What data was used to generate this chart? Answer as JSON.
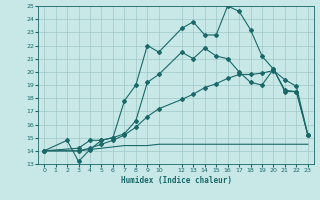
{
  "title": "",
  "xlabel": "Humidex (Indice chaleur)",
  "bg_color": "#c8e8e8",
  "grid_color": "#a0c8c8",
  "line_color": "#1a6868",
  "xlim": [
    -0.5,
    23.5
  ],
  "ylim": [
    13,
    25
  ],
  "xticks": [
    0,
    1,
    2,
    3,
    4,
    5,
    6,
    7,
    8,
    9,
    10,
    12,
    13,
    14,
    15,
    16,
    17,
    18,
    19,
    20,
    21,
    22,
    23
  ],
  "yticks": [
    13,
    14,
    15,
    16,
    17,
    18,
    19,
    20,
    21,
    22,
    23,
    24,
    25
  ],
  "line1_x": [
    0,
    2,
    3,
    4,
    5,
    6,
    7,
    8,
    9,
    10,
    12,
    13,
    14,
    15,
    16,
    17,
    18,
    19,
    20,
    21,
    22,
    23
  ],
  "line1_y": [
    14.0,
    14.8,
    13.2,
    14.1,
    14.8,
    15.0,
    17.8,
    19.0,
    22.0,
    21.5,
    23.3,
    23.8,
    22.8,
    22.8,
    25.0,
    24.6,
    23.2,
    21.2,
    20.2,
    18.6,
    18.5,
    15.2
  ],
  "line2_x": [
    0,
    3,
    4,
    5,
    6,
    7,
    8,
    9,
    10,
    12,
    13,
    14,
    15,
    16,
    17,
    18,
    19,
    20,
    21,
    22,
    23
  ],
  "line2_y": [
    14.0,
    14.2,
    14.8,
    14.8,
    15.0,
    15.3,
    16.3,
    19.2,
    19.8,
    21.5,
    21.0,
    21.8,
    21.2,
    21.0,
    20.0,
    19.2,
    19.0,
    20.2,
    18.5,
    18.5,
    15.2
  ],
  "line3_x": [
    0,
    3,
    4,
    5,
    6,
    7,
    8,
    9,
    10,
    12,
    13,
    14,
    15,
    16,
    17,
    18,
    19,
    20,
    21,
    22,
    23
  ],
  "line3_y": [
    14.0,
    14.0,
    14.2,
    14.5,
    14.8,
    15.2,
    15.8,
    16.6,
    17.2,
    17.9,
    18.3,
    18.8,
    19.1,
    19.5,
    19.8,
    19.8,
    19.9,
    20.1,
    19.4,
    18.9,
    15.2
  ],
  "line4_x": [
    0,
    2,
    3,
    4,
    5,
    6,
    7,
    8,
    9,
    10,
    12,
    13,
    14,
    15,
    16,
    17,
    18,
    19,
    20,
    21,
    22,
    23
  ],
  "line4_y": [
    14.0,
    14.0,
    14.0,
    14.1,
    14.2,
    14.3,
    14.4,
    14.4,
    14.4,
    14.5,
    14.5,
    14.5,
    14.5,
    14.5,
    14.5,
    14.5,
    14.5,
    14.5,
    14.5,
    14.5,
    14.5,
    14.5
  ]
}
